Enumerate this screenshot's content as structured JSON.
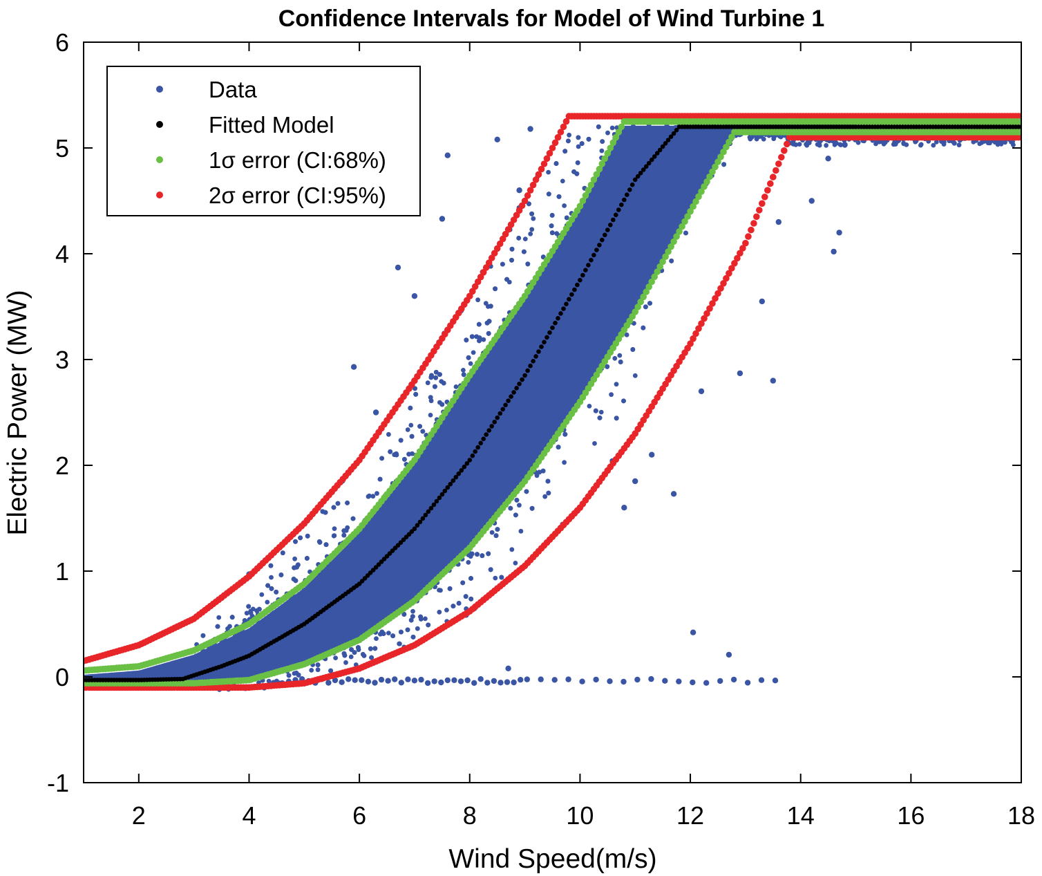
{
  "chart_data": {
    "type": "scatter",
    "title": "Confidence Intervals for Model of Wind Turbine 1",
    "xlabel": "Wind Speed(m/s)",
    "ylabel": "Electric Power (MW)",
    "xlim": [
      1,
      18
    ],
    "ylim": [
      -1,
      6
    ],
    "xticks": [
      2,
      4,
      6,
      8,
      10,
      12,
      14,
      16,
      18
    ],
    "xtick_labels": [
      "2",
      "4",
      "6",
      "8",
      "10",
      "12",
      "14",
      "16",
      "18"
    ],
    "yticks": [
      -1,
      0,
      1,
      2,
      3,
      4,
      5,
      6
    ],
    "ytick_labels": [
      "-1",
      "0",
      "1",
      "2",
      "3",
      "4",
      "5",
      "6"
    ],
    "grid": false,
    "legend_position": "top-left",
    "legend": [
      {
        "label": "Data",
        "color": "#3a55a4"
      },
      {
        "label": "Fitted Model",
        "color": "#000000"
      },
      {
        "label": "1σ error (CI:68%)",
        "color": "#6abf45"
      },
      {
        "label": "2σ error (CI:95%)",
        "color": "#e8262a"
      }
    ],
    "series": [
      {
        "name": "Fitted Model",
        "color": "#000000",
        "x": [
          1.0,
          2.0,
          2.8,
          3.5,
          4.0,
          5.0,
          6.0,
          7.0,
          8.0,
          9.0,
          10.0,
          11.0,
          11.8,
          14.0,
          16.0,
          18.0
        ],
        "y": [
          -0.03,
          -0.03,
          -0.02,
          0.1,
          0.2,
          0.5,
          0.88,
          1.4,
          2.05,
          2.85,
          3.75,
          4.7,
          5.2,
          5.2,
          5.2,
          5.2
        ]
      },
      {
        "name": "1σ upper",
        "color": "#6abf45",
        "x": [
          1.0,
          2.0,
          3.0,
          4.0,
          5.0,
          6.0,
          7.0,
          8.0,
          9.0,
          10.0,
          10.8,
          12.0,
          14.0,
          16.0,
          18.0
        ],
        "y": [
          0.06,
          0.1,
          0.25,
          0.5,
          0.88,
          1.4,
          2.05,
          2.85,
          3.6,
          4.45,
          5.25,
          5.25,
          5.25,
          5.25,
          5.25
        ]
      },
      {
        "name": "1σ lower",
        "color": "#6abf45",
        "x": [
          1.0,
          3.0,
          4.0,
          5.0,
          6.0,
          7.0,
          8.0,
          9.0,
          10.0,
          11.0,
          12.0,
          12.8,
          14.0,
          16.0,
          18.0
        ],
        "y": [
          -0.06,
          -0.06,
          -0.03,
          0.12,
          0.35,
          0.72,
          1.22,
          1.85,
          2.6,
          3.45,
          4.4,
          5.15,
          5.15,
          5.15,
          5.15
        ]
      },
      {
        "name": "2σ upper",
        "color": "#e8262a",
        "x": [
          1.0,
          2.0,
          3.0,
          4.0,
          5.0,
          6.0,
          7.0,
          8.0,
          9.0,
          9.8,
          12.0,
          14.0,
          16.0,
          18.0
        ],
        "y": [
          0.15,
          0.3,
          0.55,
          0.95,
          1.45,
          2.05,
          2.8,
          3.6,
          4.5,
          5.3,
          5.3,
          5.3,
          5.3,
          5.3
        ]
      },
      {
        "name": "2σ lower",
        "color": "#e8262a",
        "x": [
          1.0,
          4.0,
          5.0,
          6.0,
          7.0,
          8.0,
          9.0,
          10.0,
          11.0,
          12.0,
          13.0,
          13.8,
          16.0,
          18.0
        ],
        "y": [
          -0.1,
          -0.1,
          -0.06,
          0.08,
          0.3,
          0.62,
          1.05,
          1.6,
          2.3,
          3.15,
          4.1,
          5.1,
          5.1,
          5.1
        ]
      }
    ],
    "scatter_outliers": {
      "name": "Data",
      "color": "#3a55a4",
      "points": [
        [
          5.9,
          2.93
        ],
        [
          6.7,
          3.87
        ],
        [
          7.0,
          3.6
        ],
        [
          7.5,
          4.33
        ],
        [
          7.6,
          4.93
        ],
        [
          6.3,
          2.5
        ],
        [
          4.0,
          0.97
        ],
        [
          8.7,
          0.08
        ],
        [
          12.05,
          0.42
        ],
        [
          12.7,
          0.21
        ],
        [
          13.3,
          3.55
        ],
        [
          13.5,
          2.8
        ],
        [
          12.9,
          2.87
        ],
        [
          14.2,
          4.5
        ],
        [
          14.6,
          4.02
        ],
        [
          14.7,
          4.2
        ],
        [
          13.6,
          4.3
        ],
        [
          8.5,
          5.08
        ],
        [
          8.9,
          4.6
        ],
        [
          9.1,
          5.18
        ],
        [
          14.8,
          5.03
        ],
        [
          14.5,
          4.9
        ],
        [
          11.7,
          1.73
        ],
        [
          12.2,
          2.7
        ],
        [
          11.3,
          2.1
        ],
        [
          11.0,
          1.85
        ],
        [
          10.8,
          1.6
        ]
      ]
    },
    "scatter_zero_row": {
      "x_start": 4.6,
      "x_end": 13.6,
      "y": -0.04
    }
  }
}
